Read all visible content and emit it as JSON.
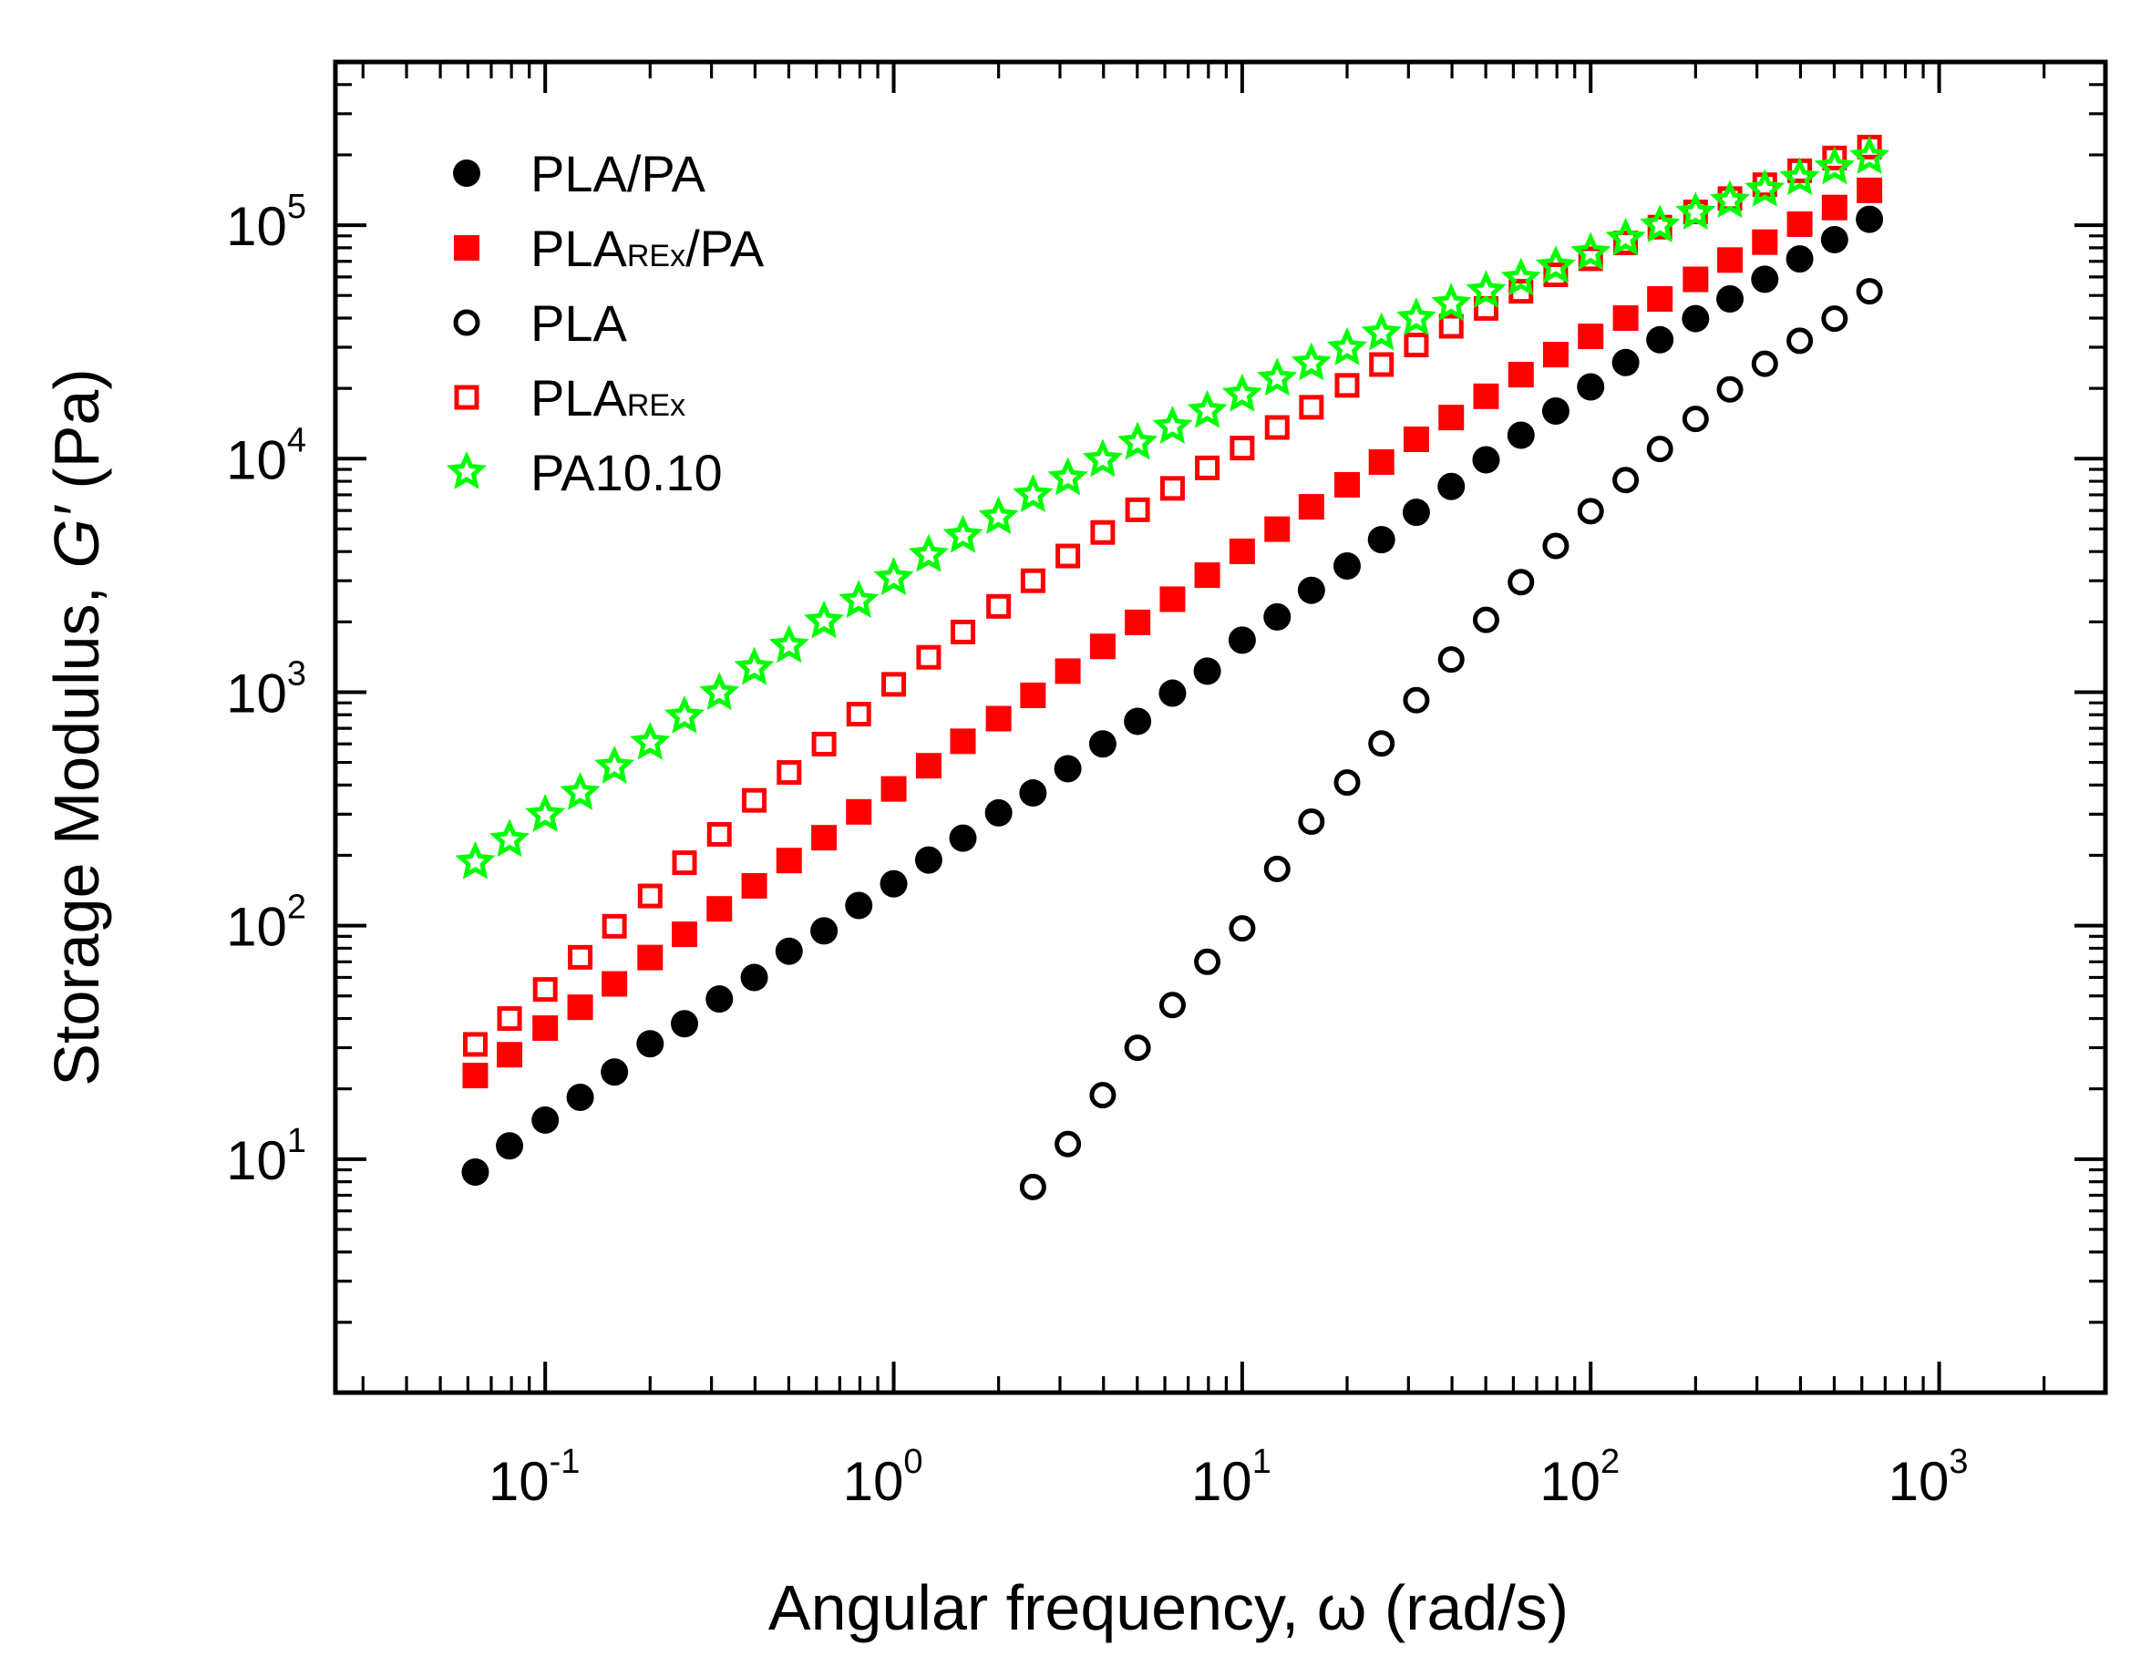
{
  "chart_data": {
    "type": "scatter",
    "title": "",
    "xlabel": "Angular frequency, ω (rad/s)",
    "ylabel_parts": {
      "prefix": "Storage Modulus, ",
      "symbol": "G′",
      "suffix": " (Pa)"
    },
    "xscale": "log",
    "yscale": "log",
    "xlim": [
      0.025,
      3000
    ],
    "ylim": [
      1,
      500000
    ],
    "x_tick_labels": [
      {
        "value": 0.1,
        "base": "10",
        "exp": "-1"
      },
      {
        "value": 1,
        "base": "10",
        "exp": "0"
      },
      {
        "value": 10,
        "base": "10",
        "exp": "1"
      },
      {
        "value": 100,
        "base": "10",
        "exp": "2"
      },
      {
        "value": 1000,
        "base": "10",
        "exp": "3"
      }
    ],
    "y_tick_labels": [
      {
        "value": 10,
        "base": "10",
        "exp": "1"
      },
      {
        "value": 100,
        "base": "10",
        "exp": "2"
      },
      {
        "value": 1000,
        "base": "10",
        "exp": "3"
      },
      {
        "value": 10000,
        "base": "10",
        "exp": "4"
      },
      {
        "value": 100000,
        "base": "10",
        "exp": "5"
      }
    ],
    "legend_position": "top-left",
    "series": [
      {
        "name": "PLA/PA",
        "label_main": "PLA/PA",
        "label_sub": "",
        "label_tail": "",
        "marker": "filled-circle",
        "color": "#000000",
        "x": [
          0.063,
          0.079,
          0.1,
          0.126,
          0.158,
          0.2,
          0.251,
          0.316,
          0.398,
          0.501,
          0.631,
          0.794,
          1,
          1.26,
          1.58,
          2,
          2.51,
          3.16,
          3.98,
          5.01,
          6.31,
          7.94,
          10,
          12.6,
          15.8,
          20,
          25.1,
          31.6,
          39.8,
          50.1,
          63.1,
          79.4,
          100,
          126,
          158,
          200,
          251,
          316,
          398,
          501,
          631
        ],
        "y": [
          8.8,
          11.4,
          14.7,
          18.4,
          23.6,
          31.2,
          38,
          48.5,
          60,
          77.7,
          95,
          122,
          151,
          191,
          237,
          304,
          370,
          470,
          600,
          750,
          990,
          1230,
          1670,
          2100,
          2730,
          3470,
          4500,
          5890,
          7600,
          9890,
          12600,
          16000,
          20300,
          25800,
          32300,
          39800,
          48300,
          58700,
          71700,
          86700,
          106000
        ]
      },
      {
        "name": "PLAREx/PA",
        "label_main": "PLA",
        "label_sub": "REx",
        "label_tail": "/PA",
        "marker": "filled-square",
        "color": "#ff0000",
        "x": [
          0.063,
          0.079,
          0.1,
          0.126,
          0.158,
          0.2,
          0.251,
          0.316,
          0.398,
          0.501,
          0.631,
          0.794,
          1,
          1.26,
          1.58,
          2,
          2.51,
          3.16,
          3.98,
          5.01,
          6.31,
          7.94,
          10,
          12.6,
          15.8,
          20,
          25.1,
          31.6,
          39.8,
          50.1,
          63.1,
          79.4,
          100,
          126,
          158,
          200,
          251,
          316,
          398,
          501,
          631
        ],
        "y": [
          22.8,
          28,
          36.4,
          44.7,
          56.3,
          73,
          91.8,
          118,
          148,
          190,
          238,
          307,
          385,
          484,
          616,
          770,
          969,
          1230,
          1570,
          1990,
          2500,
          3170,
          4010,
          4990,
          6220,
          7730,
          9670,
          12100,
          15000,
          18500,
          22900,
          27900,
          33400,
          40000,
          48300,
          58600,
          70900,
          84600,
          101000,
          119000,
          141000
        ]
      },
      {
        "name": "PLA",
        "label_main": "PLA",
        "label_sub": "",
        "label_tail": "",
        "marker": "open-circle",
        "color": "#000000",
        "x": [
          2.51,
          3.16,
          3.98,
          5.01,
          6.31,
          7.94,
          10,
          12.6,
          15.8,
          20,
          25.1,
          31.6,
          39.8,
          50.1,
          63.1,
          79.4,
          100,
          126,
          158,
          200,
          251,
          316,
          398,
          501,
          631
        ],
        "y": [
          7.6,
          11.6,
          18.8,
          30,
          45.7,
          70,
          97.3,
          175,
          279,
          410,
          603,
          924,
          1380,
          2040,
          2960,
          4230,
          5960,
          8100,
          11000,
          14800,
          19800,
          25500,
          32000,
          39800,
          52100
        ]
      },
      {
        "name": "PLAREx",
        "label_main": "PLA",
        "label_sub": "REx",
        "label_tail": "",
        "marker": "open-square",
        "color": "#ff0000",
        "x": [
          0.063,
          0.079,
          0.1,
          0.126,
          0.158,
          0.2,
          0.251,
          0.316,
          0.398,
          0.501,
          0.631,
          0.794,
          1,
          1.26,
          1.58,
          2,
          2.51,
          3.16,
          3.98,
          5.01,
          6.31,
          7.94,
          10,
          12.6,
          15.8,
          20,
          25.1,
          31.6,
          39.8,
          50.1,
          63.1,
          79.4,
          100,
          126,
          158,
          200,
          251,
          316,
          398,
          501,
          631
        ],
        "y": [
          31,
          40,
          53.3,
          73.2,
          99.4,
          134,
          186,
          246,
          344,
          453,
          599,
          805,
          1080,
          1410,
          1810,
          2330,
          3000,
          3830,
          4830,
          6040,
          7460,
          9130,
          11100,
          13600,
          16600,
          20600,
          25300,
          30700,
          36900,
          44000,
          52100,
          61300,
          71800,
          84000,
          98100,
          114000,
          130000,
          149000,
          171000,
          194000,
          216000
        ]
      },
      {
        "name": "PA10.10",
        "label_main": "PA10.10",
        "label_sub": "",
        "label_tail": "",
        "marker": "star",
        "color": "#00ff00",
        "x": [
          0.063,
          0.079,
          0.1,
          0.126,
          0.158,
          0.2,
          0.251,
          0.316,
          0.398,
          0.501,
          0.631,
          0.794,
          1,
          1.26,
          1.58,
          2,
          2.51,
          3.16,
          3.98,
          5.01,
          6.31,
          7.94,
          10,
          12.6,
          15.8,
          20,
          25.1,
          31.6,
          39.8,
          50.1,
          63.1,
          79.4,
          100,
          126,
          158,
          200,
          251,
          316,
          398,
          501,
          631
        ],
        "y": [
          187,
          233,
          298,
          370,
          480,
          607,
          787,
          991,
          1270,
          1580,
          2010,
          2460,
          3080,
          3870,
          4670,
          5620,
          6980,
          8250,
          9880,
          11700,
          13700,
          16000,
          18800,
          22000,
          25600,
          29700,
          34400,
          39900,
          46000,
          52200,
          59000,
          66600,
          76000,
          87600,
          99700,
          113000,
          127000,
          142000,
          159000,
          177000,
          196000
        ]
      }
    ]
  }
}
